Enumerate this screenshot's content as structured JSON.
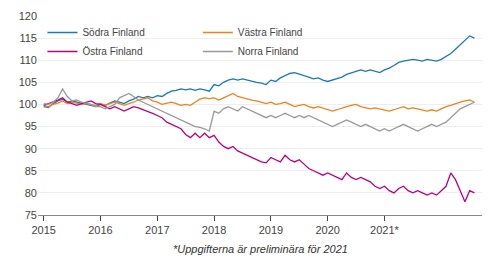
{
  "chart_data": {
    "type": "line",
    "annotations": [
      "*Uppgifterna är preliminära för 2021"
    ],
    "x": [
      2015,
      2015.0833,
      2015.1667,
      2015.25,
      2015.3333,
      2015.4167,
      2015.5,
      2015.5833,
      2015.6667,
      2015.75,
      2015.8333,
      2015.9167,
      2016,
      2016.0833,
      2016.1667,
      2016.25,
      2016.3333,
      2016.4167,
      2016.5,
      2016.5833,
      2016.6667,
      2016.75,
      2016.8333,
      2016.9167,
      2017,
      2017.0833,
      2017.1667,
      2017.25,
      2017.3333,
      2017.4167,
      2017.5,
      2017.5833,
      2017.6667,
      2017.75,
      2017.8333,
      2017.9167,
      2018,
      2018.0833,
      2018.1667,
      2018.25,
      2018.3333,
      2018.4167,
      2018.5,
      2018.5833,
      2018.6667,
      2018.75,
      2018.8333,
      2018.9167,
      2019,
      2019.0833,
      2019.1667,
      2019.25,
      2019.3333,
      2019.4167,
      2019.5,
      2019.5833,
      2019.6667,
      2019.75,
      2019.8333,
      2019.9167,
      2020,
      2020.0833,
      2020.1667,
      2020.25,
      2020.3333,
      2020.4167,
      2020.5,
      2020.5833,
      2020.6667,
      2020.75,
      2020.8333,
      2020.9167,
      2021,
      2021.0833,
      2021.1667,
      2021.25,
      2021.3333,
      2021.4167,
      2021.5,
      2021.5833,
      2021.6667,
      2021.75,
      2021.8333,
      2021.9167,
      2022,
      2022.0833,
      2022.1667,
      2022.25,
      2022.3333,
      2022.4167,
      2022.5,
      2022.5833
    ],
    "series": [
      {
        "name": "Södra Finland",
        "color": "#1a7ab5",
        "values": [
          99.5,
          99.3,
          100.2,
          100.8,
          101.2,
          100.5,
          100.8,
          100.5,
          100.2,
          100.0,
          99.8,
          99.5,
          100.0,
          99.8,
          100.3,
          100.8,
          100.5,
          100.2,
          100.8,
          101.2,
          101.8,
          101.5,
          101.8,
          101.5,
          102.0,
          101.8,
          102.5,
          103.0,
          103.2,
          103.5,
          103.3,
          103.5,
          103.2,
          103.5,
          103.3,
          103.0,
          104.5,
          104.2,
          105.0,
          105.5,
          105.8,
          105.5,
          105.8,
          105.5,
          105.3,
          105.0,
          104.8,
          104.5,
          105.5,
          105.2,
          106.0,
          106.5,
          107.0,
          107.2,
          106.8,
          106.5,
          106.2,
          105.8,
          106.0,
          105.5,
          105.2,
          105.5,
          105.8,
          106.2,
          106.8,
          107.2,
          107.5,
          107.8,
          107.5,
          107.8,
          107.5,
          107.2,
          107.8,
          108.2,
          108.8,
          109.5,
          109.8,
          110.0,
          110.2,
          110.0,
          109.8,
          110.2,
          110.0,
          109.8,
          110.2,
          110.8,
          111.5,
          112.5,
          113.5,
          114.5,
          115.5,
          115.0
        ]
      },
      {
        "name": "Västra Finland",
        "color": "#f0821e",
        "values": [
          99.8,
          99.5,
          100.0,
          100.3,
          100.8,
          100.2,
          100.5,
          100.3,
          100.0,
          100.2,
          100.0,
          99.8,
          100.2,
          99.8,
          100.2,
          100.5,
          100.2,
          99.8,
          100.2,
          100.5,
          101.0,
          101.2,
          101.5,
          100.8,
          100.5,
          100.0,
          100.3,
          100.5,
          100.2,
          99.8,
          100.0,
          99.8,
          100.5,
          101.2,
          101.5,
          101.3,
          101.5,
          101.0,
          101.5,
          102.0,
          102.5,
          101.8,
          101.5,
          101.2,
          101.0,
          100.8,
          100.5,
          100.2,
          100.5,
          100.0,
          100.2,
          100.5,
          100.0,
          99.5,
          99.8,
          100.0,
          99.5,
          99.2,
          99.5,
          99.2,
          98.8,
          98.5,
          98.8,
          99.2,
          99.5,
          99.8,
          100.0,
          99.5,
          99.2,
          99.0,
          99.2,
          99.0,
          98.8,
          98.5,
          98.8,
          99.2,
          99.5,
          99.0,
          99.2,
          99.0,
          98.8,
          98.5,
          98.8,
          98.5,
          99.0,
          99.5,
          99.8,
          100.2,
          100.5,
          100.8,
          101.0,
          100.5
        ]
      },
      {
        "name": "Östra Finland",
        "color": "#be007c",
        "values": [
          99.8,
          100.2,
          100.5,
          101.0,
          101.5,
          100.5,
          100.2,
          99.8,
          100.2,
          100.5,
          100.8,
          100.2,
          100.0,
          99.5,
          99.0,
          99.5,
          99.0,
          98.5,
          99.0,
          99.5,
          99.2,
          98.8,
          98.5,
          98.0,
          97.5,
          97.0,
          96.0,
          95.5,
          95.0,
          94.5,
          93.2,
          92.5,
          93.5,
          92.5,
          93.5,
          92.5,
          93.0,
          91.5,
          90.5,
          90.0,
          90.5,
          89.5,
          89.0,
          88.5,
          88.0,
          87.5,
          87.0,
          86.8,
          88.0,
          87.5,
          87.0,
          88.5,
          87.5,
          87.0,
          87.5,
          86.5,
          85.5,
          85.0,
          84.5,
          84.0,
          84.5,
          84.0,
          83.5,
          83.0,
          84.5,
          83.5,
          83.0,
          83.5,
          83.0,
          82.5,
          81.5,
          81.0,
          81.5,
          80.5,
          80.0,
          81.0,
          81.5,
          80.5,
          80.0,
          80.5,
          80.0,
          79.5,
          80.0,
          79.5,
          80.5,
          81.5,
          84.5,
          83.0,
          80.5,
          78.0,
          80.5,
          80.0
        ]
      },
      {
        "name": "Norra Finland",
        "color": "#999999",
        "values": [
          100.2,
          100.0,
          100.5,
          101.5,
          103.5,
          101.8,
          100.8,
          101.0,
          100.5,
          100.2,
          100.0,
          99.5,
          99.5,
          99.0,
          99.5,
          100.0,
          101.5,
          102.0,
          102.5,
          101.8,
          101.0,
          100.5,
          100.0,
          99.5,
          99.0,
          98.5,
          98.0,
          97.5,
          97.0,
          96.5,
          96.0,
          95.5,
          95.0,
          94.8,
          94.5,
          94.0,
          98.5,
          98.0,
          99.0,
          99.5,
          99.0,
          98.5,
          99.5,
          99.0,
          98.5,
          98.0,
          97.5,
          97.0,
          97.5,
          97.0,
          97.5,
          98.0,
          97.5,
          97.0,
          97.5,
          97.0,
          97.5,
          97.0,
          96.5,
          96.0,
          95.5,
          95.0,
          95.5,
          96.0,
          96.5,
          96.0,
          95.5,
          95.0,
          95.5,
          95.0,
          94.5,
          94.0,
          94.5,
          94.0,
          94.5,
          95.0,
          95.5,
          95.0,
          94.5,
          94.0,
          94.5,
          95.0,
          95.5,
          95.0,
          95.5,
          96.0,
          97.0,
          98.0,
          99.0,
          99.5,
          100.0,
          100.5
        ]
      }
    ],
    "xlim": [
      2014.9,
      2022.7167
    ],
    "xticks": [
      2015,
      2016,
      2017,
      2018,
      2019,
      2020,
      {
        "value": 2021,
        "label": "2021*"
      }
    ],
    "ylim": [
      75,
      120
    ],
    "yticks": [
      75,
      80,
      85,
      90,
      95,
      100,
      105,
      110,
      115,
      120
    ],
    "grid": true,
    "legend": "upper left"
  }
}
